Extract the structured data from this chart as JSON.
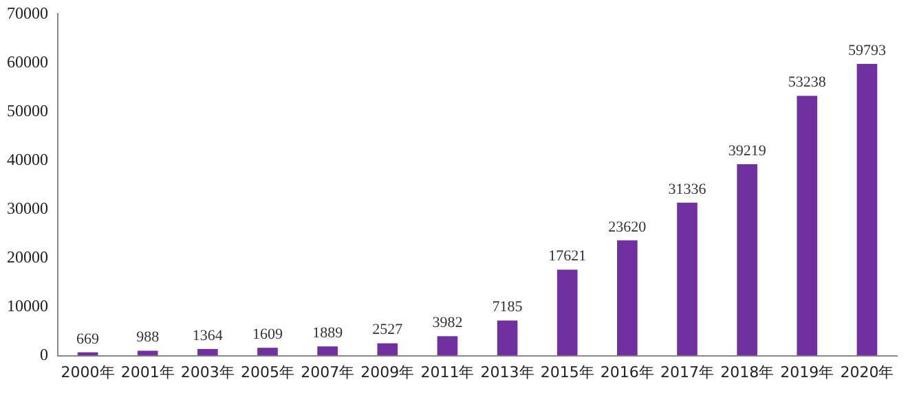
{
  "chart_data": {
    "type": "bar",
    "categories": [
      "2000年",
      "2001年",
      "2003年",
      "2005年",
      "2007年",
      "2009年",
      "2011年",
      "2013年",
      "2015年",
      "2016年",
      "2017年",
      "2018年",
      "2019年",
      "2020年"
    ],
    "values": [
      669,
      988,
      1364,
      1609,
      1889,
      2527,
      3982,
      7185,
      17621,
      23620,
      31336,
      39219,
      53238,
      59793
    ],
    "color": "#7030a0",
    "ylim": [
      0,
      70000
    ],
    "yticks": [
      0,
      10000,
      20000,
      30000,
      40000,
      50000,
      60000,
      70000
    ],
    "grid": false,
    "legend": false,
    "data_labels": true
  }
}
